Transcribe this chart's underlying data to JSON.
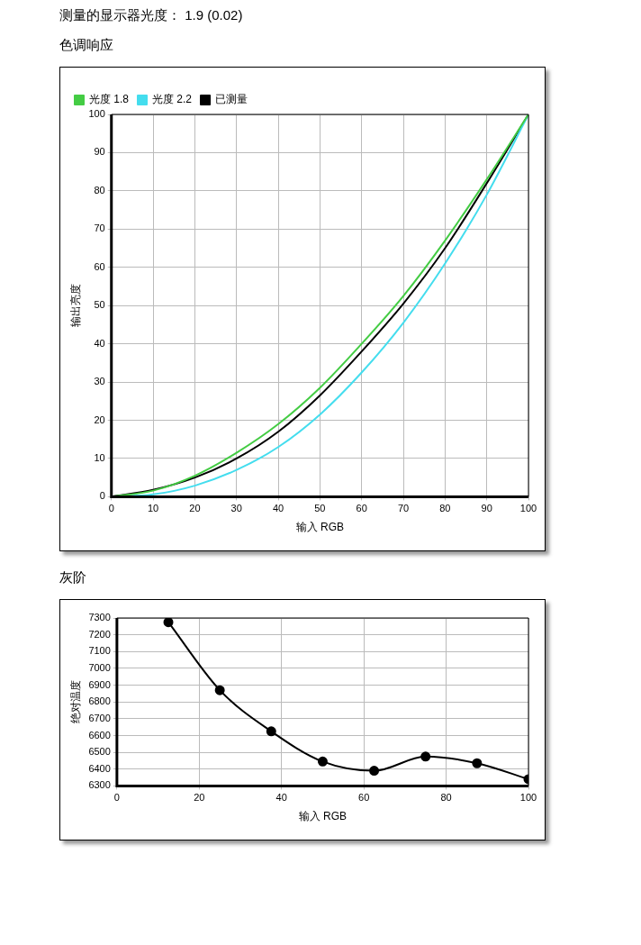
{
  "chart_data": [
    {
      "type": "line",
      "annotations": [
        "测量的显示器光度： 1.9 (0.02)"
      ],
      "title": "色调响应",
      "xlabel": "输入 RGB",
      "ylabel": "输出亮度",
      "x": [
        0,
        10,
        20,
        30,
        40,
        50,
        60,
        70,
        80,
        90,
        100
      ],
      "xlim": [
        0,
        100
      ],
      "xticks": [
        0,
        10,
        20,
        30,
        40,
        50,
        60,
        70,
        80,
        90,
        100
      ],
      "ylim": [
        0,
        100
      ],
      "yticks": [
        0,
        10,
        20,
        30,
        40,
        50,
        60,
        70,
        80,
        90,
        100
      ],
      "grid": true,
      "legend": "top left",
      "marker": "none",
      "line_style": "solid",
      "series": [
        {
          "name": "光度 1.8",
          "color": "#44cc44",
          "values": [
            0,
            1.6,
            5.5,
            11.5,
            19,
            28.5,
            40,
            52.5,
            67,
            83,
            100
          ]
        },
        {
          "name": "光度 2.2",
          "color": "#44ddee",
          "values": [
            0,
            0.6,
            2.9,
            7,
            13,
            21.5,
            32.5,
            45.5,
            61,
            79,
            100
          ]
        },
        {
          "name": "已测量",
          "color": "#000000",
          "values": [
            0,
            1.8,
            5,
            10,
            17,
            26.5,
            38,
            50.5,
            65,
            82,
            100
          ]
        }
      ]
    },
    {
      "type": "line",
      "title": "灰阶",
      "xlabel": "输入 RGB",
      "ylabel": "绝对温度",
      "x": [
        12.5,
        25,
        37.5,
        50,
        62.5,
        75,
        87.5,
        100
      ],
      "xlim": [
        0,
        100
      ],
      "xticks": [
        0,
        20,
        40,
        60,
        80,
        100
      ],
      "ylim": [
        6300,
        7300
      ],
      "yticks": [
        6300,
        6400,
        6500,
        6600,
        6700,
        6800,
        6900,
        7000,
        7100,
        7200,
        7300
      ],
      "grid": true,
      "marker": "circle",
      "line_style": "solid",
      "series": [
        {
          "color": "#000000",
          "values": [
            7275,
            6870,
            6625,
            6445,
            6390,
            6475,
            6435,
            6340
          ]
        }
      ]
    }
  ]
}
